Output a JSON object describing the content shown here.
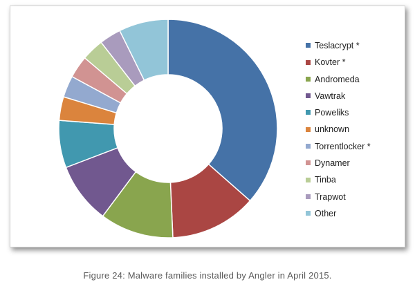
{
  "caption": "Figure 24: Malware families installed by Angler in April 2015.",
  "chart_data": {
    "type": "pie",
    "variant": "donut",
    "title": "",
    "legend_position": "right",
    "slices": [
      {
        "name": "Teslacrypt *",
        "value": 36.5,
        "color": "#4572A7"
      },
      {
        "name": "Kovter *",
        "value": 12.8,
        "color": "#AA4643"
      },
      {
        "name": "Andromeda",
        "value": 10.9,
        "color": "#89A54E"
      },
      {
        "name": "Vawtrak",
        "value": 9.0,
        "color": "#71588F"
      },
      {
        "name": "Poweliks",
        "value": 7.0,
        "color": "#4198AF"
      },
      {
        "name": "unknown",
        "value": 3.5,
        "color": "#DB843D"
      },
      {
        "name": "Torrentlocker *",
        "value": 3.2,
        "color": "#93A9CF"
      },
      {
        "name": "Dynamer",
        "value": 3.3,
        "color": "#D19392"
      },
      {
        "name": "Tinba",
        "value": 3.3,
        "color": "#B9CD96"
      },
      {
        "name": "Trapwot",
        "value": 3.2,
        "color": "#A99BBD"
      },
      {
        "name": "Other",
        "value": 7.3,
        "color": "#92C5D8"
      }
    ]
  }
}
